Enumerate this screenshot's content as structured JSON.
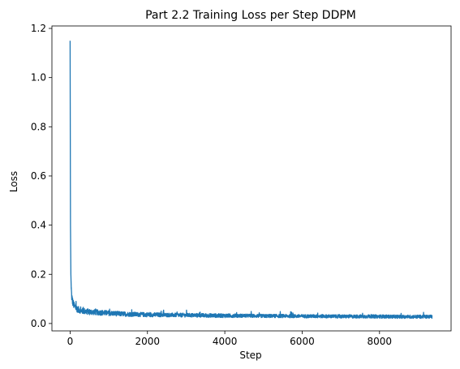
{
  "chart_data": {
    "type": "line",
    "title": "Part 2.2 Training Loss per Step DDPM",
    "xlabel": "Step",
    "ylabel": "Loss",
    "xlim": [
      -470,
      9850
    ],
    "ylim": [
      -0.03,
      1.21
    ],
    "x_ticks": [
      0,
      2000,
      4000,
      6000,
      8000
    ],
    "x_tick_labels": [
      "0",
      "2000",
      "4000",
      "6000",
      "8000"
    ],
    "y_ticks": [
      0.0,
      0.2,
      0.4,
      0.6,
      0.8,
      1.0,
      1.2
    ],
    "y_tick_labels": [
      "0.0",
      "0.2",
      "0.4",
      "0.6",
      "0.8",
      "1.0",
      "1.2"
    ],
    "grid": false,
    "legend": "none",
    "series": [
      {
        "color": "#1f77b4",
        "x": [
          0,
          5,
          10,
          20,
          30,
          40,
          60,
          80,
          100,
          150,
          200,
          300,
          400,
          500,
          600,
          700,
          800,
          1000,
          1200,
          1500,
          2000,
          2500,
          3000,
          3500,
          4000,
          4500,
          5000,
          5500,
          6000,
          6500,
          7000,
          7500,
          8000,
          8500,
          9000,
          9360
        ],
        "y": [
          1.15,
          0.75,
          0.4,
          0.2,
          0.14,
          0.11,
          0.09,
          0.08,
          0.072,
          0.062,
          0.056,
          0.05,
          0.048,
          0.046,
          0.045,
          0.044,
          0.043,
          0.041,
          0.039,
          0.037,
          0.035,
          0.034,
          0.033,
          0.032,
          0.031,
          0.031,
          0.03,
          0.03,
          0.029,
          0.029,
          0.028,
          0.028,
          0.028,
          0.027,
          0.027,
          0.027
        ],
        "noise": [
          0,
          0,
          0,
          0,
          0.02,
          0.02,
          0.018,
          0.016,
          0.015,
          0.014,
          0.013,
          0.012,
          0.012,
          0.012,
          0.011,
          0.011,
          0.011,
          0.01,
          0.01,
          0.009,
          0.009,
          0.008,
          0.008,
          0.008,
          0.008,
          0.007,
          0.007,
          0.007,
          0.007,
          0.007,
          0.007,
          0.007,
          0.007,
          0.007,
          0.007,
          0.007
        ]
      }
    ]
  }
}
